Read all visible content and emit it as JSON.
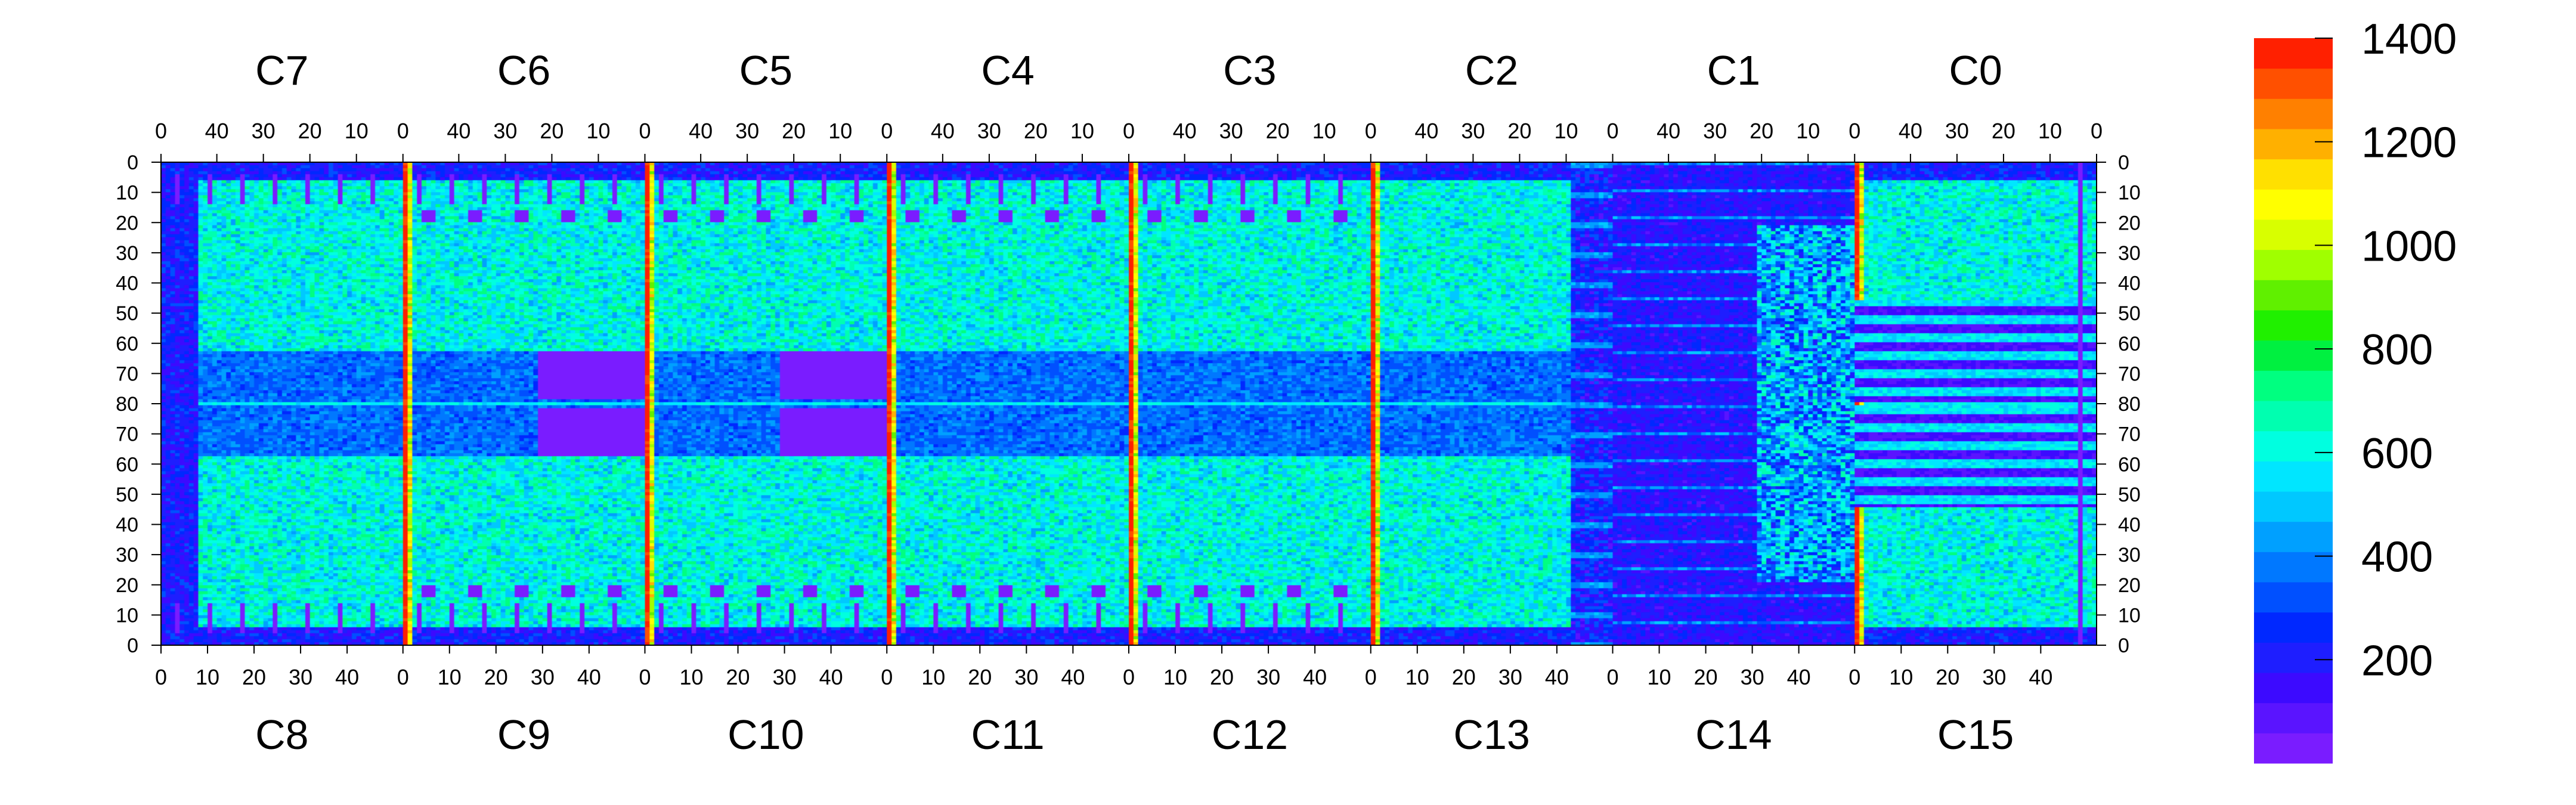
{
  "chart_data": {
    "type": "heatmap",
    "title": "",
    "xlabel": "",
    "ylabel": "",
    "top_chips": [
      "C7",
      "C6",
      "C5",
      "C4",
      "C3",
      "C2",
      "C1",
      "C0"
    ],
    "bottom_chips": [
      "C8",
      "C9",
      "C10",
      "C11",
      "C12",
      "C13",
      "C14",
      "C15"
    ],
    "top_ticks": [
      "40",
      "30",
      "20",
      "10",
      "0"
    ],
    "top_ticks_first": [
      "0"
    ],
    "bottom_ticks": [
      "0",
      "10",
      "20",
      "30",
      "40"
    ],
    "y_ticks": [
      "0",
      "10",
      "20",
      "30",
      "40",
      "50",
      "60",
      "70",
      "80",
      "70",
      "60",
      "50",
      "40",
      "30",
      "20",
      "10",
      "0"
    ],
    "colorbar": {
      "min": 0,
      "max": 1400,
      "ticks": [
        "200",
        "400",
        "600",
        "800",
        "1000",
        "1200",
        "1400"
      ],
      "tick_values": [
        200,
        400,
        600,
        800,
        1000,
        1200,
        1400
      ],
      "colors": [
        "#7a1cff",
        "#5a14ff",
        "#3c0aff",
        "#1e1eff",
        "#0028ff",
        "#0050ff",
        "#0078ff",
        "#00a0ff",
        "#00c8ff",
        "#00e6ff",
        "#00ffe0",
        "#00ffb0",
        "#00ff80",
        "#00f040",
        "#20f000",
        "#60f000",
        "#a0ff00",
        "#d8ff00",
        "#ffff00",
        "#ffe000",
        "#ffb000",
        "#ff8000",
        "#ff5000",
        "#ff2000"
      ]
    },
    "columns_per_chip": 52,
    "rows_per_half": 80,
    "typical_level": 600,
    "dead_level": 30,
    "edge_column_level": 1300,
    "masked_regions": "C13/C14 region mostly low (~150) with horizontal stripes",
    "grid": false
  }
}
